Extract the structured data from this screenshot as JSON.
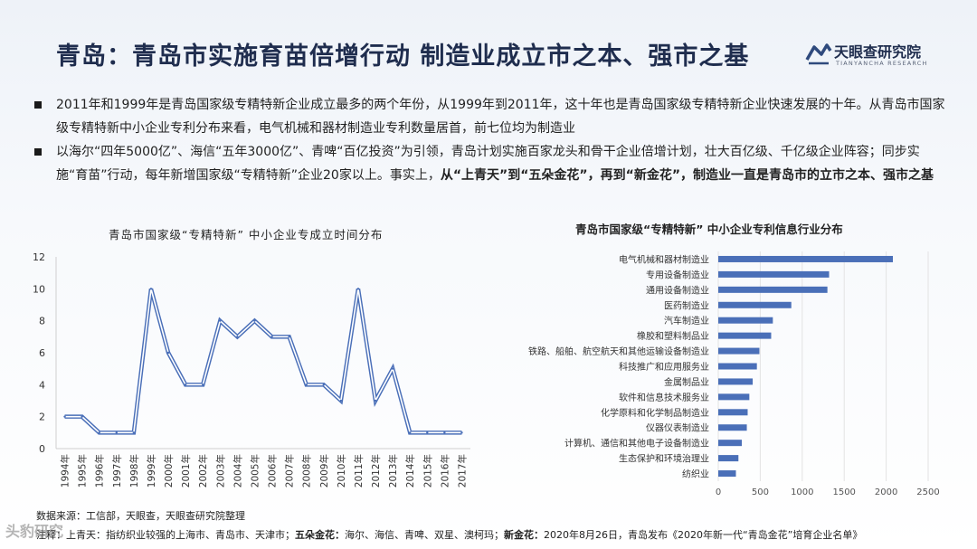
{
  "title": "青岛：青岛市实施育苗倍增行动 制造业成立市之本、强市之基",
  "logo": {
    "name": "天眼查研究院",
    "sub": "TIANYANCHA RESEARCH"
  },
  "bullets": [
    {
      "text": "2011年和1999年是青岛国家级专精特新企业成立最多的两个年份，从1999年到2011年，这十年也是青岛国家级专精特新企业快速发展的十年。从青岛市国家级专精特新中小企业专利分布来看，电气机械和器材制造业专利数量居首，前七位均为制造业"
    },
    {
      "text": "以海尔“四年5000亿”、海信“五年3000亿”、青啤“百亿投资”为引领，青岛计划实施百家龙头和骨干企业倍增计划，壮大百亿级、千亿级企业阵容；同步实施“育苗”行动，每年新增国家级“专精特新”企业20家以上。事实上，",
      "bold": "从“上青天”到“五朵金花”，再到“新金花”，制造业一直是青岛市的立市之本、强市之基"
    }
  ],
  "chart_data": [
    {
      "type": "line",
      "title": "青岛市国家级“专精特新” 中小企业专成立时间分布",
      "x": [
        "1994年",
        "1995年",
        "1996年",
        "1997年",
        "1998年",
        "1999年",
        "2000年",
        "2001年",
        "2002年",
        "2003年",
        "2004年",
        "2005年",
        "2006年",
        "2007年",
        "2008年",
        "2009年",
        "2010年",
        "2011年",
        "2012年",
        "2013年",
        "2014年",
        "2015年",
        "2016年",
        "2017年"
      ],
      "series": [
        {
          "values": [
            2,
            2,
            1,
            1,
            1,
            10,
            6,
            4,
            4,
            8,
            7,
            8,
            7,
            7,
            4,
            4,
            3,
            10,
            3,
            5,
            1,
            1,
            1,
            1
          ],
          "color": "#4a6fb8"
        }
      ],
      "ylim": [
        0,
        12
      ],
      "yticks": [
        0,
        2,
        4,
        6,
        8,
        10,
        12
      ],
      "grid": false
    },
    {
      "type": "bar",
      "orientation": "horizontal",
      "title": "青岛市国家级“专精特新” 中小企业专利信息行业分布",
      "categories": [
        "电气机械和器材制造业",
        "专用设备制造业",
        "通用设备制造业",
        "医药制造业",
        "汽车制造业",
        "橡胶和塑料制品业",
        "铁路、船舶、航空航天和其他运输设备制造业",
        "科技推广和应用服务业",
        "金属制品业",
        "软件和信息技术服务业",
        "化学原料和化学制品制造业",
        "仪器仪表制造业",
        "计算机、通信和其他电子设备制造业",
        "生态保护和环境治理业",
        "纺织业"
      ],
      "values": [
        2080,
        1320,
        1300,
        870,
        650,
        630,
        490,
        460,
        410,
        370,
        350,
        340,
        280,
        240,
        210
      ],
      "xlim": [
        0,
        2500
      ],
      "xticks": [
        0,
        500,
        1000,
        1500,
        2000,
        2500
      ],
      "color": "#4a6fb8",
      "grid": true
    }
  ],
  "footer": {
    "source": "数据来源：工信部，天眼查，天眼查研究院整理",
    "note_prefix": "注释：上青天：指纺织业较强的上海市、青岛市、天津市；",
    "note_b1": "五朵金花：",
    "note_t1": "海尔、海信、青啤、双星、澳柯玛；",
    "note_b2": "新金花：",
    "note_t2": "2020年8月26日，青岛发布《2020年新一代“青岛金花”培育企业名单》"
  },
  "watermark": "头豹研究"
}
